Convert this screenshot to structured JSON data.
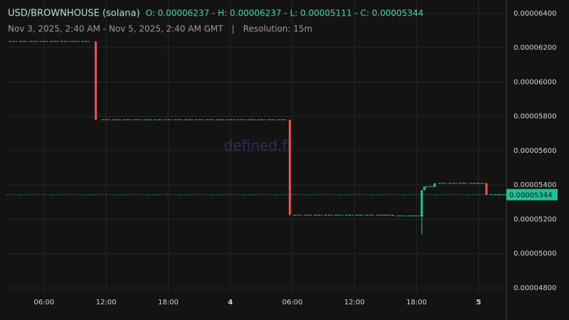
{
  "chart_data": {
    "type": "candlestick",
    "title": "USD/BROWNHOUSE (solana)",
    "ohlc_summary": "O: 0.00006237 - H: 0.00006237 - L: 0.00005111 - C: 0.00005344",
    "subtitle": "Nov 3, 2025, 2:40 AM - Nov 5, 2025, 2:40 AM GMT",
    "separator": "|",
    "resolution": "Resolution: 15m",
    "watermark": "defined.fi",
    "up_color": "#26c6a0",
    "down_color": "#ef5350",
    "grid": true,
    "xlim": [
      2.43,
      50.68
    ],
    "xticks": [
      {
        "value": 6,
        "label": "06:00"
      },
      {
        "value": 12,
        "label": "12:00"
      },
      {
        "value": 18,
        "label": "18:00"
      },
      {
        "value": 24,
        "label": "4"
      },
      {
        "value": 30,
        "label": "06:00"
      },
      {
        "value": 36,
        "label": "12:00"
      },
      {
        "value": 42,
        "label": "18:00"
      },
      {
        "value": 48,
        "label": "5"
      }
    ],
    "ylim": [
      4.771e-05,
      6.437e-05
    ],
    "yticks": [
      {
        "value": 4.8e-05,
        "label": "0.00004800"
      },
      {
        "value": 5e-05,
        "label": "0.00005000"
      },
      {
        "value": 5.2e-05,
        "label": "0.00005200"
      },
      {
        "value": 5.4e-05,
        "label": "0.00005400"
      },
      {
        "value": 5.6e-05,
        "label": "0.00005600"
      },
      {
        "value": 5.8e-05,
        "label": "0.00005800"
      },
      {
        "value": 6e-05,
        "label": "0.00006000"
      },
      {
        "value": 6.2e-05,
        "label": "0.00006200"
      },
      {
        "value": 6.4e-05,
        "label": "0.00006400"
      }
    ],
    "last_price": 5.344e-05,
    "candles": [
      [
        3,
        6.237e-05,
        6.237e-05,
        6.237e-05,
        6.237e-05
      ],
      [
        4,
        6.237e-05,
        6.237e-05,
        6.237e-05,
        6.237e-05
      ],
      [
        5,
        6.237e-05,
        6.237e-05,
        6.237e-05,
        6.237e-05
      ],
      [
        6,
        6.237e-05,
        6.237e-05,
        6.237e-05,
        6.237e-05
      ],
      [
        7,
        6.237e-05,
        6.237e-05,
        6.237e-05,
        6.237e-05
      ],
      [
        8,
        6.237e-05,
        6.237e-05,
        6.237e-05,
        6.237e-05
      ],
      [
        9,
        6.237e-05,
        6.237e-05,
        6.237e-05,
        6.237e-05
      ],
      [
        10,
        6.237e-05,
        6.237e-05,
        6.237e-05,
        6.237e-05
      ],
      [
        11,
        6.237e-05,
        6.237e-05,
        5.78e-05,
        5.78e-05
      ],
      [
        12,
        5.78e-05,
        5.78e-05,
        5.78e-05,
        5.78e-05
      ],
      [
        13,
        5.78e-05,
        5.78e-05,
        5.78e-05,
        5.78e-05
      ],
      [
        14,
        5.78e-05,
        5.78e-05,
        5.78e-05,
        5.78e-05
      ],
      [
        15,
        5.78e-05,
        5.78e-05,
        5.78e-05,
        5.78e-05
      ],
      [
        16,
        5.78e-05,
        5.78e-05,
        5.78e-05,
        5.78e-05
      ],
      [
        17,
        5.78e-05,
        5.78e-05,
        5.78e-05,
        5.78e-05
      ],
      [
        18,
        5.78e-05,
        5.78e-05,
        5.78e-05,
        5.78e-05
      ],
      [
        19,
        5.78e-05,
        5.78e-05,
        5.78e-05,
        5.78e-05
      ],
      [
        20,
        5.78e-05,
        5.78e-05,
        5.78e-05,
        5.78e-05
      ],
      [
        21,
        5.78e-05,
        5.78e-05,
        5.78e-05,
        5.78e-05
      ],
      [
        22,
        5.78e-05,
        5.78e-05,
        5.78e-05,
        5.78e-05
      ],
      [
        23,
        5.78e-05,
        5.78e-05,
        5.78e-05,
        5.78e-05
      ],
      [
        24,
        5.78e-05,
        5.78e-05,
        5.78e-05,
        5.78e-05
      ],
      [
        25,
        5.78e-05,
        5.78e-05,
        5.78e-05,
        5.78e-05
      ],
      [
        26,
        5.78e-05,
        5.78e-05,
        5.78e-05,
        5.78e-05
      ],
      [
        27,
        5.78e-05,
        5.78e-05,
        5.78e-05,
        5.78e-05
      ],
      [
        28,
        5.78e-05,
        5.78e-05,
        5.78e-05,
        5.78e-05
      ],
      [
        29,
        5.78e-05,
        5.78e-05,
        5.78e-05,
        5.78e-05
      ],
      [
        29.75,
        5.78e-05,
        5.78e-05,
        5.225e-05,
        5.225e-05
      ],
      [
        30.5,
        5.225e-05,
        5.225e-05,
        5.225e-05,
        5.225e-05
      ],
      [
        31.5,
        5.225e-05,
        5.225e-05,
        5.225e-05,
        5.225e-05
      ],
      [
        32.5,
        5.225e-05,
        5.225e-05,
        5.225e-05,
        5.225e-05
      ],
      [
        33.5,
        5.225e-05,
        5.225e-05,
        5.225e-05,
        5.225e-05
      ],
      [
        34.5,
        5.225e-05,
        5.225e-05,
        5.225e-05,
        5.225e-05
      ],
      [
        35.5,
        5.225e-05,
        5.225e-05,
        5.225e-05,
        5.225e-05
      ],
      [
        36.5,
        5.225e-05,
        5.225e-05,
        5.225e-05,
        5.225e-05
      ],
      [
        37.5,
        5.225e-05,
        5.225e-05,
        5.225e-05,
        5.225e-05
      ],
      [
        38.5,
        5.225e-05,
        5.225e-05,
        5.225e-05,
        5.225e-05
      ],
      [
        39.25,
        5.225e-05,
        5.225e-05,
        5.225e-05,
        5.225e-05
      ],
      [
        39.75,
        5.225e-05,
        5.225e-05,
        5.22e-05,
        5.22e-05
      ],
      [
        40.5,
        5.22e-05,
        5.22e-05,
        5.22e-05,
        5.22e-05
      ],
      [
        41.5,
        5.22e-05,
        5.22e-05,
        5.22e-05,
        5.22e-05
      ],
      [
        42.25,
        5.22e-05,
        5.22e-05,
        5.22e-05,
        5.22e-05
      ],
      [
        42.5,
        5.22e-05,
        5.37e-05,
        5.111e-05,
        5.37e-05
      ],
      [
        42.75,
        5.37e-05,
        5.39e-05,
        5.37e-05,
        5.39e-05
      ],
      [
        43.25,
        5.39e-05,
        5.39e-05,
        5.39e-05,
        5.39e-05
      ],
      [
        43.75,
        5.39e-05,
        5.41e-05,
        5.39e-05,
        5.41e-05
      ],
      [
        44.5,
        5.41e-05,
        5.41e-05,
        5.41e-05,
        5.41e-05
      ],
      [
        45.5,
        5.41e-05,
        5.41e-05,
        5.41e-05,
        5.41e-05
      ],
      [
        46.5,
        5.41e-05,
        5.41e-05,
        5.41e-05,
        5.41e-05
      ],
      [
        47.5,
        5.41e-05,
        5.41e-05,
        5.41e-05,
        5.41e-05
      ],
      [
        48.25,
        5.41e-05,
        5.41e-05,
        5.41e-05,
        5.41e-05
      ],
      [
        48.75,
        5.41e-05,
        5.41e-05,
        5.344e-05,
        5.344e-05
      ],
      [
        49.5,
        5.344e-05,
        5.344e-05,
        5.344e-05,
        5.344e-05
      ],
      [
        50.25,
        5.344e-05,
        5.344e-05,
        5.344e-05,
        5.344e-05
      ]
    ]
  }
}
